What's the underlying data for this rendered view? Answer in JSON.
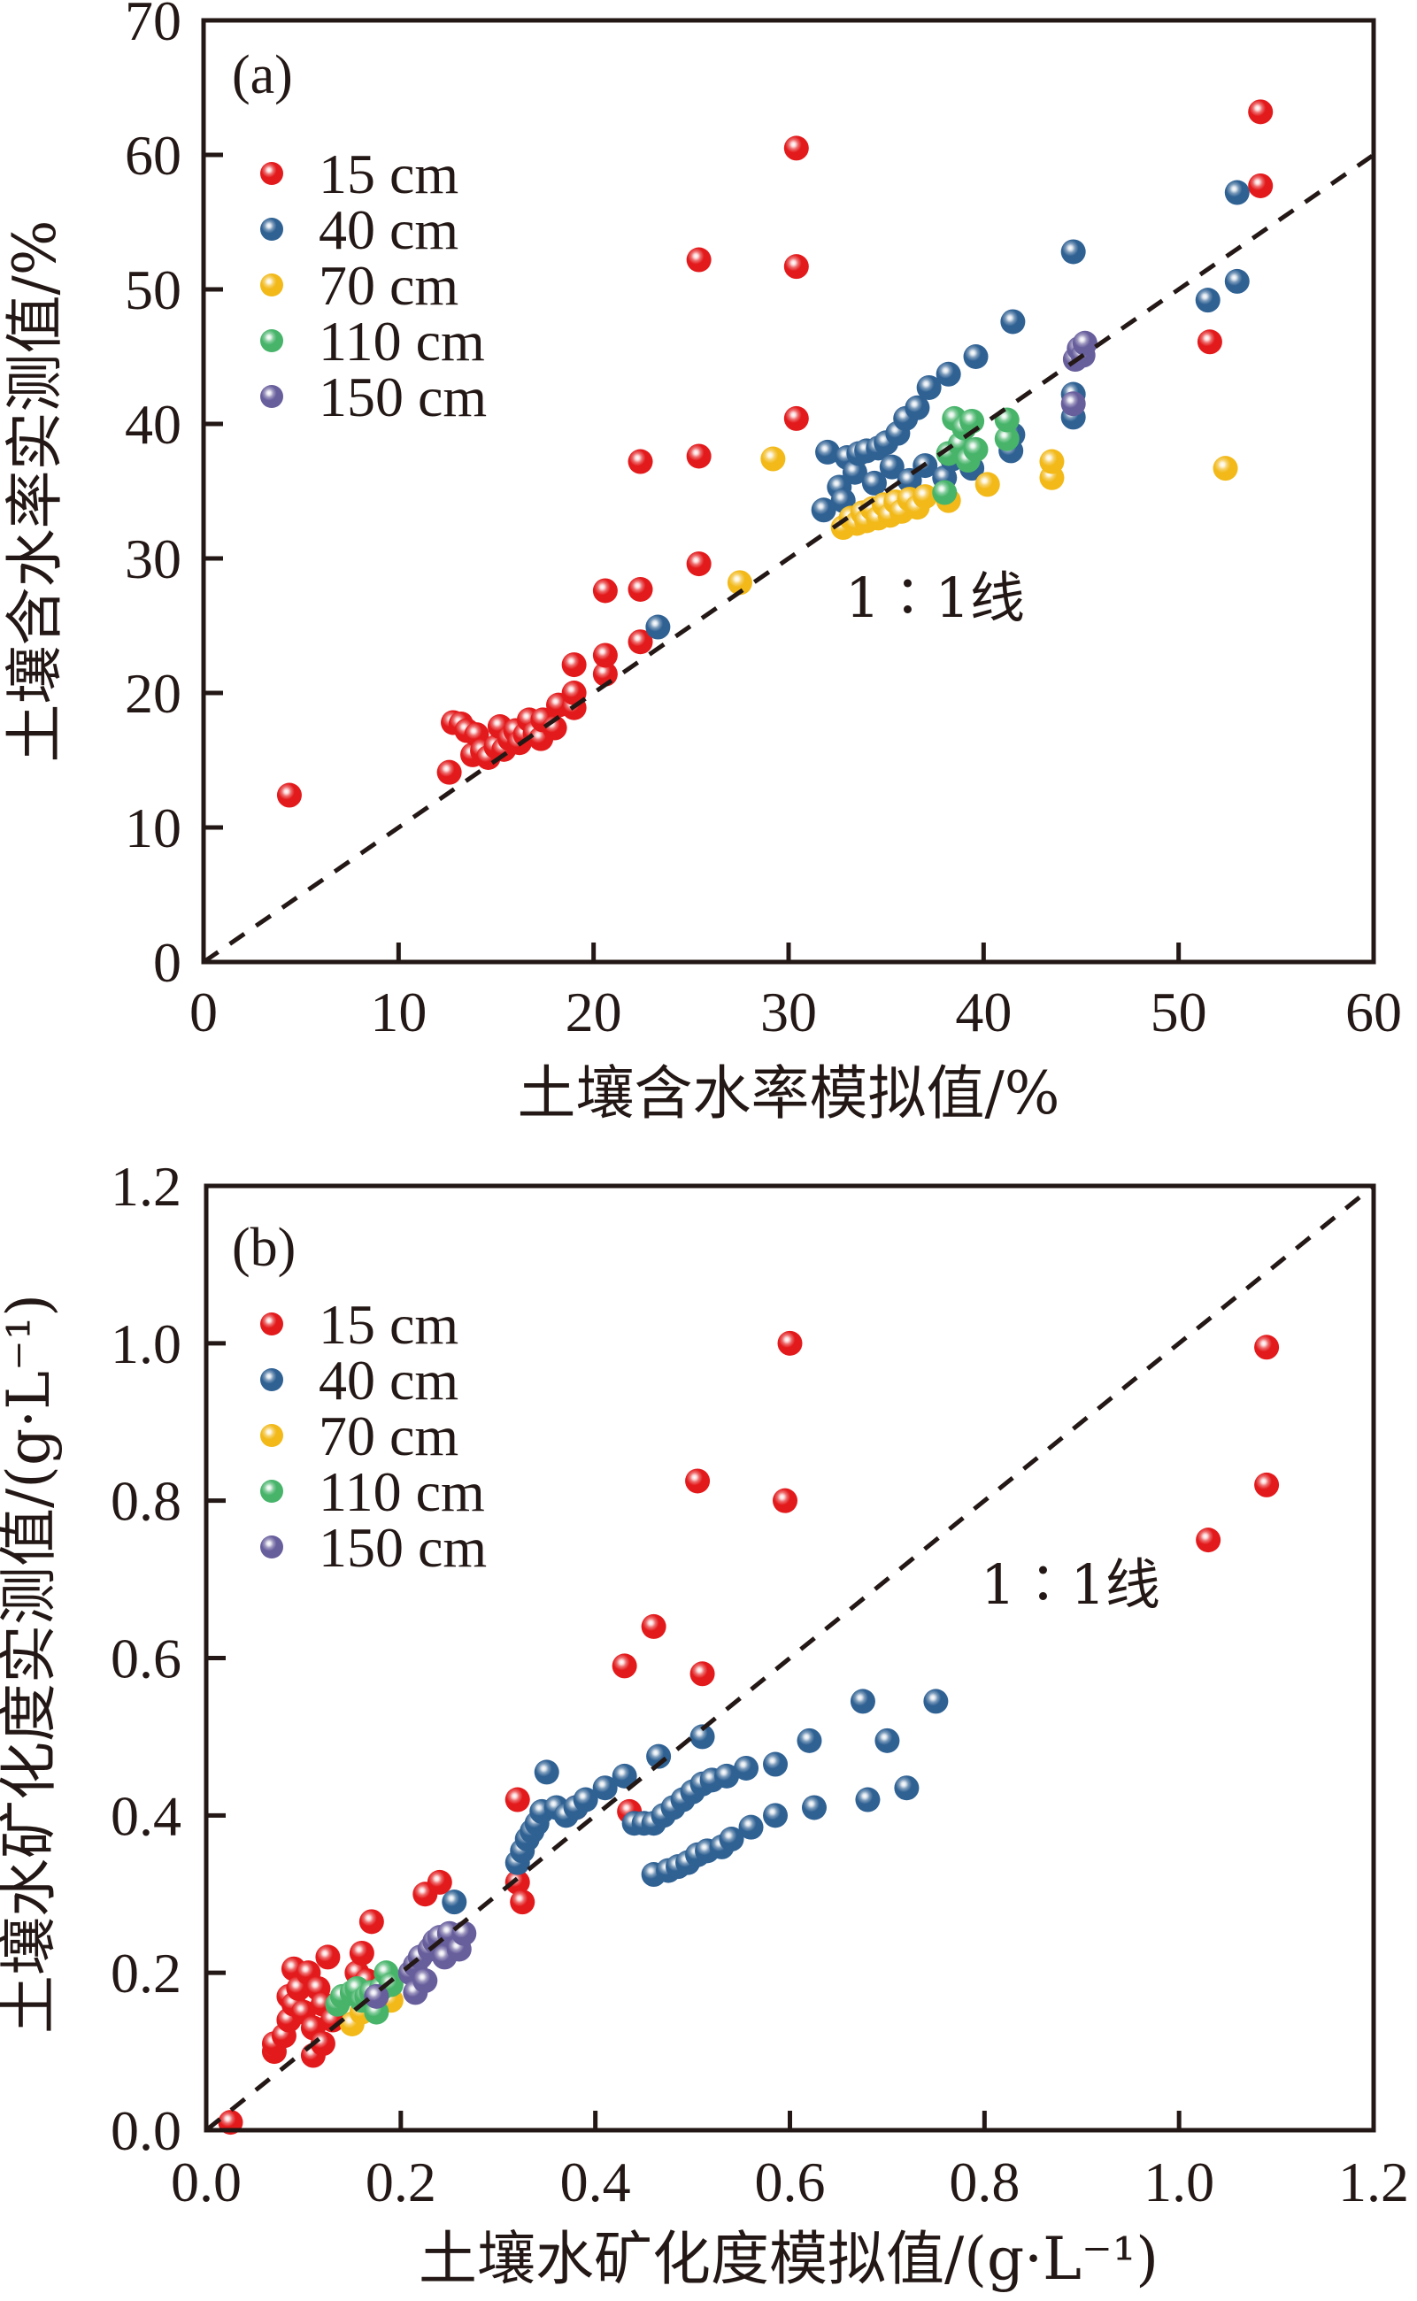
{
  "chart_data": [
    {
      "type": "scatter",
      "panel_label": "(a)",
      "xlabel": "土壤含水率模拟值/%",
      "ylabel": "土壤含水率实测值/%",
      "xlim": [
        0,
        60
      ],
      "ylim": [
        0,
        70
      ],
      "xticks": [
        0,
        10,
        20,
        30,
        40,
        50,
        60
      ],
      "yticks": [
        0,
        10,
        20,
        30,
        40,
        50,
        60,
        70
      ],
      "xtick_labels": [
        "0",
        "10",
        "20",
        "30",
        "40",
        "50",
        "60"
      ],
      "ytick_labels": [
        "0",
        "10",
        "20",
        "30",
        "40",
        "50",
        "60",
        "70"
      ],
      "grid": false,
      "legend_position": "upper-left",
      "reference_line": {
        "label": "1∶1线",
        "style": "dashed",
        "from": [
          0,
          0
        ],
        "to": [
          60,
          60
        ]
      },
      "series": [
        {
          "name": "15 cm",
          "color": "#E31A1C",
          "points": [
            [
              4.4,
              12.4
            ],
            [
              12.6,
              14.1
            ],
            [
              12.8,
              17.8
            ],
            [
              13.2,
              17.7
            ],
            [
              13.5,
              17.2
            ],
            [
              13.8,
              15.4
            ],
            [
              14.0,
              16.9
            ],
            [
              14.3,
              15.7
            ],
            [
              14.6,
              15.2
            ],
            [
              15.0,
              16.0
            ],
            [
              15.2,
              17.5
            ],
            [
              15.4,
              15.8
            ],
            [
              15.7,
              16.6
            ],
            [
              16.0,
              17.2
            ],
            [
              16.2,
              16.3
            ],
            [
              16.5,
              16.9
            ],
            [
              16.7,
              18.0
            ],
            [
              17.0,
              17.0
            ],
            [
              17.3,
              16.6
            ],
            [
              17.4,
              18.0
            ],
            [
              18.0,
              17.4
            ],
            [
              18.2,
              19.1
            ],
            [
              19.0,
              18.9
            ],
            [
              19.0,
              20.0
            ],
            [
              19.0,
              22.1
            ],
            [
              20.6,
              21.4
            ],
            [
              20.6,
              22.8
            ],
            [
              20.6,
              27.6
            ],
            [
              22.4,
              23.8
            ],
            [
              22.4,
              27.7
            ],
            [
              22.4,
              37.2
            ],
            [
              25.4,
              29.6
            ],
            [
              25.4,
              37.6
            ],
            [
              25.4,
              52.2
            ],
            [
              30.4,
              40.4
            ],
            [
              30.4,
              51.7
            ],
            [
              30.4,
              60.5
            ],
            [
              51.6,
              46.1
            ],
            [
              54.2,
              57.7
            ],
            [
              54.2,
              63.2
            ]
          ]
        },
        {
          "name": "40 cm",
          "color": "#2F6193",
          "points": [
            [
              23.3,
              24.9
            ],
            [
              31.8,
              33.6
            ],
            [
              32.0,
              37.9
            ],
            [
              32.6,
              35.3
            ],
            [
              32.8,
              34.3
            ],
            [
              33.0,
              37.5
            ],
            [
              33.4,
              36.4
            ],
            [
              33.6,
              37.8
            ],
            [
              34.0,
              38.0
            ],
            [
              34.4,
              35.6
            ],
            [
              34.6,
              38.2
            ],
            [
              35.0,
              38.6
            ],
            [
              35.3,
              36.8
            ],
            [
              35.6,
              39.3
            ],
            [
              36.0,
              40.4
            ],
            [
              36.2,
              35.8
            ],
            [
              36.6,
              41.2
            ],
            [
              37.0,
              36.9
            ],
            [
              37.2,
              42.7
            ],
            [
              38.0,
              36.0
            ],
            [
              38.2,
              43.7
            ],
            [
              38.4,
              37.4
            ],
            [
              39.4,
              36.7
            ],
            [
              39.6,
              45.0
            ],
            [
              41.4,
              38.0
            ],
            [
              41.5,
              39.2
            ],
            [
              41.5,
              47.6
            ],
            [
              44.6,
              40.5
            ],
            [
              44.6,
              42.2
            ],
            [
              44.6,
              52.8
            ],
            [
              51.5,
              49.2
            ],
            [
              53.0,
              50.6
            ],
            [
              53.0,
              57.2
            ]
          ]
        },
        {
          "name": "70 cm",
          "color": "#F2B919",
          "points": [
            [
              27.5,
              28.2
            ],
            [
              29.2,
              37.4
            ],
            [
              32.8,
              32.3
            ],
            [
              33.2,
              33.0
            ],
            [
              33.5,
              32.6
            ],
            [
              33.8,
              33.4
            ],
            [
              34.0,
              32.8
            ],
            [
              34.3,
              33.7
            ],
            [
              34.6,
              33.0
            ],
            [
              34.9,
              34.0
            ],
            [
              35.2,
              33.2
            ],
            [
              35.5,
              34.2
            ],
            [
              35.8,
              33.5
            ],
            [
              36.2,
              34.4
            ],
            [
              36.6,
              33.8
            ],
            [
              37.0,
              34.6
            ],
            [
              38.2,
              34.3
            ],
            [
              40.2,
              35.5
            ],
            [
              43.5,
              36.0
            ],
            [
              43.5,
              37.2
            ],
            [
              52.4,
              36.7
            ]
          ]
        },
        {
          "name": "110 cm",
          "color": "#47B46A",
          "points": [
            [
              38.0,
              34.9
            ],
            [
              38.2,
              37.8
            ],
            [
              38.5,
              40.4
            ],
            [
              38.8,
              38.5
            ],
            [
              39.0,
              39.7
            ],
            [
              39.2,
              37.3
            ],
            [
              39.4,
              40.2
            ],
            [
              39.6,
              38.1
            ],
            [
              41.2,
              38.9
            ],
            [
              41.2,
              40.3
            ]
          ]
        },
        {
          "name": "150 cm",
          "color": "#675E9C",
          "points": [
            [
              44.6,
              41.5
            ],
            [
              44.7,
              44.8
            ],
            [
              44.9,
              45.6
            ],
            [
              45.1,
              45.1
            ],
            [
              45.2,
              46.0
            ]
          ]
        }
      ]
    },
    {
      "type": "scatter",
      "panel_label": "(b)",
      "xlabel": "土壤水矿化度模拟值/(g·L⁻¹)",
      "ylabel": "土壤水矿化度实测值/(g·L⁻¹)",
      "xlim": [
        0,
        1.2
      ],
      "ylim": [
        0,
        1.2
      ],
      "xticks": [
        0,
        0.2,
        0.4,
        0.6,
        0.8,
        1.0,
        1.2
      ],
      "yticks": [
        0,
        0.2,
        0.4,
        0.6,
        0.8,
        1.0,
        1.2
      ],
      "xtick_labels": [
        "0.0",
        "0.2",
        "0.4",
        "0.6",
        "0.8",
        "1.0",
        "1.2"
      ],
      "ytick_labels": [
        "0.0",
        "0.2",
        "0.4",
        "0.6",
        "0.8",
        "1.0",
        "1.2"
      ],
      "grid": false,
      "legend_position": "upper-left",
      "reference_line": {
        "label": "1∶1线",
        "style": "dashed",
        "from": [
          0,
          0
        ],
        "to": [
          1.2,
          1.2
        ]
      },
      "series": [
        {
          "name": "15 cm",
          "color": "#E31A1C",
          "points": [
            [
              0.025,
              0.01
            ],
            [
              0.07,
              0.1
            ],
            [
              0.07,
              0.11
            ],
            [
              0.08,
              0.12
            ],
            [
              0.085,
              0.14
            ],
            [
              0.085,
              0.17
            ],
            [
              0.09,
              0.205
            ],
            [
              0.09,
              0.16
            ],
            [
              0.095,
              0.18
            ],
            [
              0.1,
              0.15
            ],
            [
              0.105,
              0.2
            ],
            [
              0.11,
              0.095
            ],
            [
              0.11,
              0.13
            ],
            [
              0.115,
              0.18
            ],
            [
              0.12,
              0.11
            ],
            [
              0.12,
              0.16
            ],
            [
              0.125,
              0.22
            ],
            [
              0.13,
              0.14
            ],
            [
              0.155,
              0.2
            ],
            [
              0.16,
              0.225
            ],
            [
              0.165,
              0.19
            ],
            [
              0.17,
              0.265
            ],
            [
              0.225,
              0.3
            ],
            [
              0.24,
              0.315
            ],
            [
              0.32,
              0.42
            ],
            [
              0.32,
              0.315
            ],
            [
              0.325,
              0.29
            ],
            [
              0.38,
              0.41
            ],
            [
              0.43,
              0.59
            ],
            [
              0.435,
              0.405
            ],
            [
              0.46,
              0.64
            ],
            [
              0.505,
              0.825
            ],
            [
              0.51,
              0.58
            ],
            [
              0.595,
              0.8
            ],
            [
              0.6,
              1.0
            ],
            [
              1.03,
              0.75
            ],
            [
              1.09,
              0.82
            ],
            [
              1.09,
              0.995
            ]
          ]
        },
        {
          "name": "40 cm",
          "color": "#2F6193",
          "points": [
            [
              0.255,
              0.29
            ],
            [
              0.32,
              0.34
            ],
            [
              0.325,
              0.355
            ],
            [
              0.33,
              0.37
            ],
            [
              0.335,
              0.38
            ],
            [
              0.34,
              0.39
            ],
            [
              0.345,
              0.405
            ],
            [
              0.35,
              0.455
            ],
            [
              0.36,
              0.41
            ],
            [
              0.37,
              0.4
            ],
            [
              0.38,
              0.41
            ],
            [
              0.39,
              0.42
            ],
            [
              0.41,
              0.435
            ],
            [
              0.43,
              0.45
            ],
            [
              0.44,
              0.39
            ],
            [
              0.45,
              0.39
            ],
            [
              0.46,
              0.39
            ],
            [
              0.46,
              0.325
            ],
            [
              0.465,
              0.475
            ],
            [
              0.47,
              0.4
            ],
            [
              0.475,
              0.33
            ],
            [
              0.48,
              0.41
            ],
            [
              0.485,
              0.335
            ],
            [
              0.49,
              0.42
            ],
            [
              0.495,
              0.34
            ],
            [
              0.5,
              0.43
            ],
            [
              0.505,
              0.35
            ],
            [
              0.51,
              0.44
            ],
            [
              0.51,
              0.5
            ],
            [
              0.515,
              0.355
            ],
            [
              0.52,
              0.445
            ],
            [
              0.53,
              0.36
            ],
            [
              0.535,
              0.45
            ],
            [
              0.54,
              0.37
            ],
            [
              0.555,
              0.46
            ],
            [
              0.56,
              0.385
            ],
            [
              0.585,
              0.465
            ],
            [
              0.585,
              0.4
            ],
            [
              0.62,
              0.495
            ],
            [
              0.625,
              0.41
            ],
            [
              0.675,
              0.545
            ],
            [
              0.68,
              0.42
            ],
            [
              0.7,
              0.495
            ],
            [
              0.72,
              0.435
            ],
            [
              0.75,
              0.545
            ]
          ]
        },
        {
          "name": "70 cm",
          "color": "#F2B919",
          "points": [
            [
              0.15,
              0.135
            ],
            [
              0.16,
              0.15
            ],
            [
              0.175,
              0.16
            ],
            [
              0.19,
              0.165
            ]
          ]
        },
        {
          "name": "110 cm",
          "color": "#47B46A",
          "points": [
            [
              0.135,
              0.16
            ],
            [
              0.14,
              0.17
            ],
            [
              0.15,
              0.175
            ],
            [
              0.155,
              0.18
            ],
            [
              0.16,
              0.165
            ],
            [
              0.165,
              0.17
            ],
            [
              0.17,
              0.175
            ],
            [
              0.175,
              0.15
            ],
            [
              0.18,
              0.18
            ],
            [
              0.185,
              0.2
            ],
            [
              0.19,
              0.185
            ]
          ]
        },
        {
          "name": "150 cm",
          "color": "#675E9C",
          "points": [
            [
              0.175,
              0.17
            ],
            [
              0.21,
              0.2
            ],
            [
              0.215,
              0.175
            ],
            [
              0.215,
              0.21
            ],
            [
              0.22,
              0.22
            ],
            [
              0.225,
              0.19
            ],
            [
              0.23,
              0.23
            ],
            [
              0.235,
              0.24
            ],
            [
              0.24,
              0.245
            ],
            [
              0.245,
              0.22
            ],
            [
              0.25,
              0.25
            ],
            [
              0.26,
              0.23
            ],
            [
              0.265,
              0.25
            ]
          ]
        }
      ]
    }
  ]
}
